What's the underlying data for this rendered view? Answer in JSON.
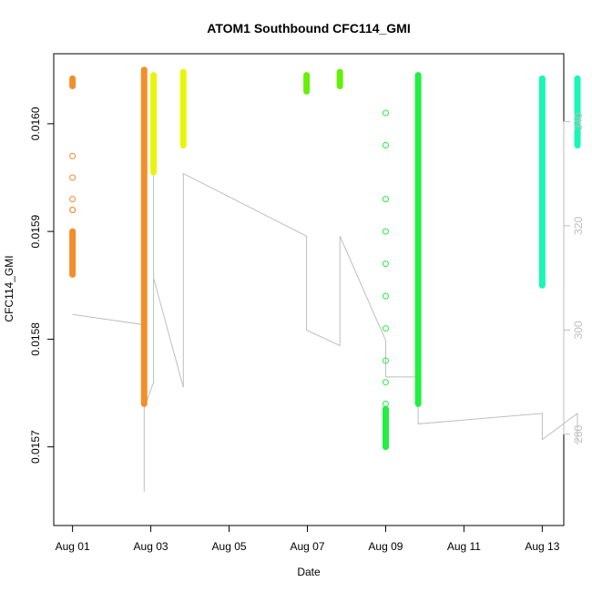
{
  "chart_data": {
    "type": "scatter",
    "title": "ATOM1 Southbound CFC114_GMI",
    "xlabel": "Date",
    "ylabel": "CFC114_GMI",
    "xlim": [
      -0.48,
      12.55
    ],
    "ylim": [
      0.015627,
      0.016065
    ],
    "x_ticks": [
      {
        "value": 0,
        "label": "Aug 01"
      },
      {
        "value": 2,
        "label": "Aug 03"
      },
      {
        "value": 4,
        "label": "Aug 05"
      },
      {
        "value": 6,
        "label": "Aug 07"
      },
      {
        "value": 8,
        "label": "Aug 09"
      },
      {
        "value": 10,
        "label": "Aug 11"
      },
      {
        "value": 12,
        "label": "Aug 13"
      }
    ],
    "y_ticks": [
      {
        "value": 0.0157,
        "label": "0.0157"
      },
      {
        "value": 0.0158,
        "label": "0.0158"
      },
      {
        "value": 0.0159,
        "label": "0.0159"
      },
      {
        "value": 0.016,
        "label": "0.0160"
      }
    ],
    "y2_ticks": [
      {
        "value": 280,
        "label": "280"
      },
      {
        "value": 300,
        "label": "300"
      },
      {
        "value": 320,
        "label": "320"
      },
      {
        "value": 340,
        "label": "340"
      }
    ],
    "y2lim": [
      262.5,
      353.0
    ],
    "grid": false,
    "secondary_line_color": "#bebebe",
    "series": [
      {
        "color": "#F28E2B",
        "segments": [
          [
            0.0,
            0.016035,
            0.016042
          ],
          [
            0.0,
            0.01586,
            0.0159
          ],
          [
            1.83,
            0.01574,
            0.01605
          ]
        ],
        "points": [
          [
            0.0,
            0.01597
          ],
          [
            0.0,
            0.01595
          ],
          [
            0.0,
            0.01593
          ],
          [
            0.0,
            0.01592
          ],
          [
            0.0,
            0.01592
          ]
        ]
      },
      {
        "color": "#E8F50A",
        "segments": [
          [
            2.07,
            0.015955,
            0.016045
          ],
          [
            2.83,
            0.01598,
            0.016048
          ]
        ],
        "points": []
      },
      {
        "color": "#66F008",
        "segments": [
          [
            5.98,
            0.01603,
            0.016045
          ],
          [
            6.83,
            0.016035,
            0.016048
          ]
        ],
        "points": []
      },
      {
        "color": "#22EE44",
        "segments": [
          [
            8.0,
            0.0157,
            0.015735
          ],
          [
            8.83,
            0.01574,
            0.016045
          ]
        ],
        "points": [
          [
            8.0,
            0.01601
          ],
          [
            8.0,
            0.01598
          ],
          [
            8.0,
            0.01593
          ],
          [
            8.0,
            0.0159
          ],
          [
            8.0,
            0.01587
          ],
          [
            8.0,
            0.01584
          ],
          [
            8.0,
            0.01581
          ],
          [
            8.0,
            0.01578
          ],
          [
            8.0,
            0.01576
          ],
          [
            8.0,
            0.01574
          ]
        ]
      },
      {
        "color": "#17F7B5",
        "segments": [
          [
            12.0,
            0.01585,
            0.016042
          ],
          [
            12.9,
            0.01598,
            0.016042
          ]
        ],
        "points": []
      }
    ],
    "secondary_series": [
      {
        "x": 0.0,
        "y": 303
      },
      {
        "x": 1.83,
        "y": 301
      },
      {
        "x": 1.83,
        "y": 269
      },
      {
        "x": 1.83,
        "y": 285
      },
      {
        "x": 2.07,
        "y": 290
      },
      {
        "x": 2.07,
        "y": 338
      },
      {
        "x": 2.07,
        "y": 310
      },
      {
        "x": 2.83,
        "y": 289
      },
      {
        "x": 2.83,
        "y": 330
      },
      {
        "x": 5.98,
        "y": 318
      },
      {
        "x": 5.98,
        "y": 300
      },
      {
        "x": 6.83,
        "y": 297
      },
      {
        "x": 6.83,
        "y": 318
      },
      {
        "x": 8.0,
        "y": 298
      },
      {
        "x": 8.0,
        "y": 291
      },
      {
        "x": 8.83,
        "y": 291
      },
      {
        "x": 8.83,
        "y": 282
      },
      {
        "x": 12.0,
        "y": 284
      },
      {
        "x": 12.0,
        "y": 279
      },
      {
        "x": 12.9,
        "y": 284
      },
      {
        "x": 12.9,
        "y": 278
      }
    ]
  }
}
